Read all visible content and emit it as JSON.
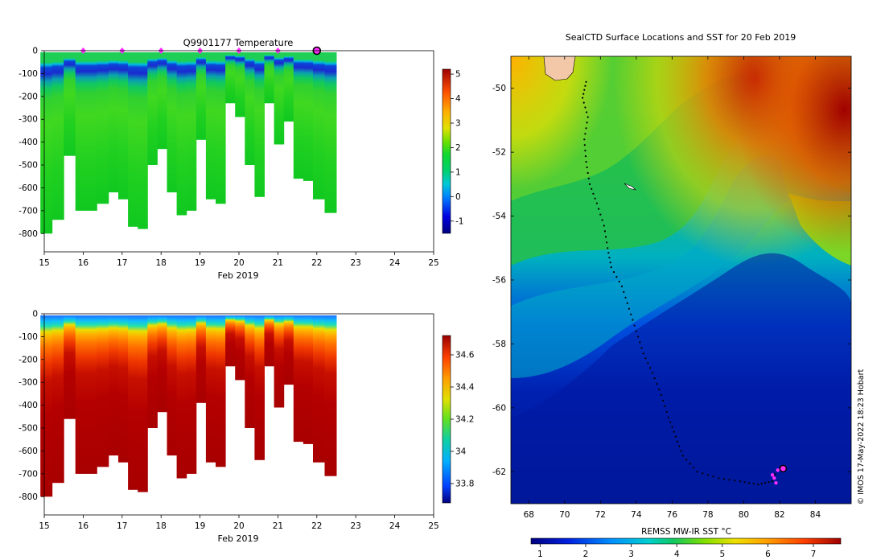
{
  "chart_data": [
    {
      "type": "heatmap",
      "title": "Q9901177  Temperature",
      "xlabel": "Feb 2019",
      "x_ticks": [
        "15",
        "16",
        "17",
        "18",
        "19",
        "20",
        "21",
        "22",
        "23",
        "24",
        "25"
      ],
      "y_ticks": [
        "0",
        "-100",
        "-200",
        "-300",
        "-400",
        "-500",
        "-600",
        "-700",
        "-800"
      ],
      "xlim": [
        15,
        25
      ],
      "ylim": [
        -880,
        0
      ],
      "colorbar_ticks": [
        "5",
        "4",
        "3",
        "2",
        "1",
        "0",
        "-1"
      ],
      "colorbar_range": [
        -1.5,
        5.2
      ],
      "profile_markers_days": [
        16,
        17,
        18,
        19,
        20,
        21
      ],
      "current_day": 22,
      "profiles": [
        {
          "day": 15.05,
          "max_depth": 800
        },
        {
          "day": 15.35,
          "max_depth": 740
        },
        {
          "day": 15.65,
          "max_depth": 460
        },
        {
          "day": 15.95,
          "max_depth": 700
        },
        {
          "day": 16.25,
          "max_depth": 700
        },
        {
          "day": 16.5,
          "max_depth": 670
        },
        {
          "day": 16.8,
          "max_depth": 620
        },
        {
          "day": 17.05,
          "max_depth": 650
        },
        {
          "day": 17.3,
          "max_depth": 770
        },
        {
          "day": 17.55,
          "max_depth": 780
        },
        {
          "day": 17.8,
          "max_depth": 500
        },
        {
          "day": 18.05,
          "max_depth": 430
        },
        {
          "day": 18.3,
          "max_depth": 620
        },
        {
          "day": 18.55,
          "max_depth": 720
        },
        {
          "day": 18.8,
          "max_depth": 700
        },
        {
          "day": 19.05,
          "max_depth": 390
        },
        {
          "day": 19.3,
          "max_depth": 650
        },
        {
          "day": 19.55,
          "max_depth": 670
        },
        {
          "day": 19.8,
          "max_depth": 230
        },
        {
          "day": 20.05,
          "max_depth": 290
        },
        {
          "day": 20.3,
          "max_depth": 500
        },
        {
          "day": 20.55,
          "max_depth": 640
        },
        {
          "day": 20.8,
          "max_depth": 230
        },
        {
          "day": 21.05,
          "max_depth": 410
        },
        {
          "day": 21.3,
          "max_depth": 310
        },
        {
          "day": 21.55,
          "max_depth": 560
        },
        {
          "day": 21.8,
          "max_depth": 570
        },
        {
          "day": 22.05,
          "max_depth": 650
        },
        {
          "day": 22.35,
          "max_depth": 710
        }
      ]
    },
    {
      "type": "heatmap",
      "title": "",
      "xlabel": "Feb 2019",
      "x_ticks": [
        "15",
        "16",
        "17",
        "18",
        "19",
        "20",
        "21",
        "22",
        "23",
        "24",
        "25"
      ],
      "y_ticks": [
        "0",
        "-100",
        "-200",
        "-300",
        "-400",
        "-500",
        "-600",
        "-700",
        "-800"
      ],
      "xlim": [
        15,
        25
      ],
      "ylim": [
        -880,
        0
      ],
      "colorbar_ticks": [
        "34.6",
        "34.4",
        "34.2",
        "34",
        "33.8"
      ],
      "colorbar_range": [
        33.68,
        34.72
      ]
    },
    {
      "type": "heatmap",
      "title": "SealCTD Surface Locations and SST for 20 Feb 2019",
      "x_ticks": [
        "68",
        "70",
        "72",
        "74",
        "76",
        "78",
        "80",
        "82",
        "84"
      ],
      "y_ticks": [
        "-50",
        "-52",
        "-54",
        "-56",
        "-58",
        "-60",
        "-62"
      ],
      "xlim": [
        67,
        86
      ],
      "ylim": [
        -63,
        -49
      ],
      "colorbar_label": "REMSS MW-IR SST °C",
      "colorbar_ticks": [
        "1",
        "2",
        "3",
        "4",
        "5",
        "6",
        "7"
      ],
      "colorbar_range": [
        0.8,
        7.6
      ],
      "credit": "© IMOS 17-May-2022 18:23 Hobart",
      "track": [
        [
          71.2,
          -49.8
        ],
        [
          71.0,
          -50.3
        ],
        [
          71.3,
          -50.9
        ],
        [
          71.1,
          -51.6
        ],
        [
          71.2,
          -52.3
        ],
        [
          71.4,
          -53.0
        ],
        [
          71.8,
          -53.6
        ],
        [
          72.2,
          -54.3
        ],
        [
          72.4,
          -55.0
        ],
        [
          72.6,
          -55.6
        ],
        [
          73.2,
          -56.2
        ],
        [
          73.6,
          -56.9
        ],
        [
          74.0,
          -57.6
        ],
        [
          74.4,
          -58.3
        ],
        [
          74.9,
          -58.9
        ],
        [
          75.4,
          -59.6
        ],
        [
          75.8,
          -60.3
        ],
        [
          76.2,
          -60.9
        ],
        [
          76.6,
          -61.5
        ],
        [
          77.4,
          -62.0
        ],
        [
          78.6,
          -62.2
        ],
        [
          79.8,
          -62.3
        ],
        [
          80.8,
          -62.4
        ],
        [
          81.6,
          -62.3
        ],
        [
          81.8,
          -62.0
        ]
      ],
      "current_position": [
        82.2,
        -61.9
      ],
      "recent_positions": [
        [
          81.6,
          -62.1
        ],
        [
          81.7,
          -62.2
        ],
        [
          81.8,
          -62.35
        ],
        [
          81.9,
          -61.95
        ]
      ]
    }
  ]
}
